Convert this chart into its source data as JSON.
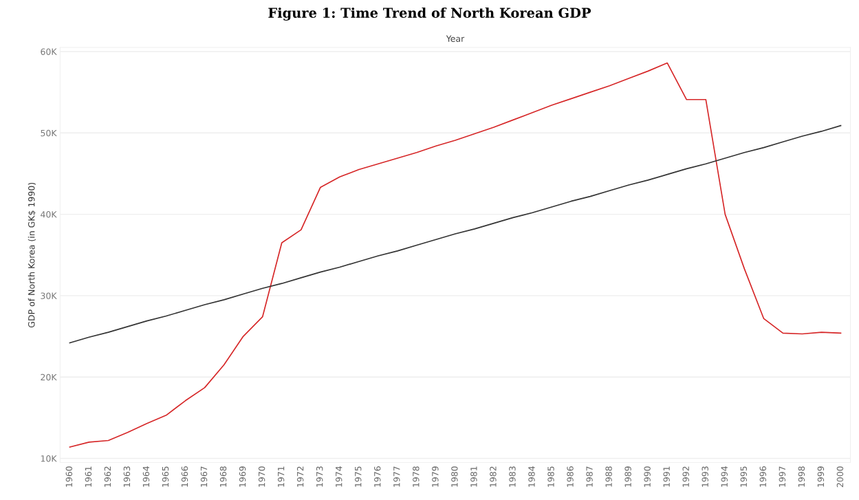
{
  "chart_data": {
    "type": "line",
    "title": "Figure 1: Time Trend of North Korean GDP",
    "xlabel": "Year",
    "ylabel": "GDP of North Korea (in GK$ 1990)",
    "categories": [
      "1960",
      "1961",
      "1962",
      "1963",
      "1964",
      "1965",
      "1966",
      "1967",
      "1968",
      "1969",
      "1970",
      "1971",
      "1972",
      "1973",
      "1974",
      "1975",
      "1976",
      "1977",
      "1978",
      "1979",
      "1980",
      "1981",
      "1982",
      "1983",
      "1984",
      "1985",
      "1986",
      "1987",
      "1988",
      "1989",
      "1990",
      "1991",
      "1992",
      "1993",
      "1994",
      "1995",
      "1996",
      "1997",
      "1998",
      "1999",
      "2000"
    ],
    "series": [
      {
        "color": "#d62728",
        "values": [
          11400,
          12000,
          12200,
          13200,
          14300,
          15300,
          17100,
          18700,
          21500,
          25000,
          27400,
          36500,
          38100,
          43300,
          44600,
          45500,
          46200,
          46900,
          47600,
          48400,
          49100,
          49900,
          50700,
          51600,
          52500,
          53400,
          54200,
          55000,
          55800,
          56700,
          57600,
          58600,
          54100,
          54100,
          40000,
          33300,
          27200,
          25400,
          25300,
          25500,
          25400
        ]
      },
      {
        "type": "line",
        "color": "#333333",
        "values": [
          24200,
          24900,
          25500,
          26200,
          26900,
          27500,
          28200,
          28900,
          29500,
          30200,
          30900,
          31500,
          32200,
          32900,
          33500,
          34200,
          34900,
          35500,
          36200,
          36900,
          37600,
          38200,
          38900,
          39600,
          40200,
          40900,
          41600,
          42200,
          42900,
          43600,
          44200,
          44900,
          45600,
          46200,
          46900,
          47600,
          48200,
          48900,
          49600,
          50200,
          50900
        ]
      }
    ],
    "ylim": [
      9500,
      60500
    ],
    "yticks": [
      {
        "value": 10000,
        "label": "10K"
      },
      {
        "value": 20000,
        "label": "20K"
      },
      {
        "value": 30000,
        "label": "30K"
      },
      {
        "value": 40000,
        "label": "40K"
      },
      {
        "value": 50000,
        "label": "50K"
      },
      {
        "value": 60000,
        "label": "60K"
      }
    ],
    "grid": "y",
    "marker": "none",
    "line_style": "solid"
  }
}
